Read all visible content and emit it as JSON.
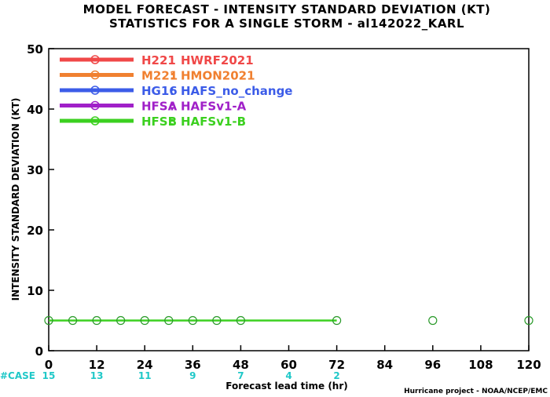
{
  "chart_data": {
    "type": "line",
    "title": "MODEL FORECAST - INTENSITY STANDARD DEVIATION (KT)",
    "subtitle": "STATISTICS FOR A SINGLE STORM - al142022_KARL",
    "xlabel": "Forecast lead time (hr)",
    "ylabel": "INTENSITY STANDARD DEVIATION (KT)",
    "xlim": [
      0,
      120
    ],
    "ylim": [
      0,
      50
    ],
    "x_ticks": [
      0,
      12,
      24,
      36,
      48,
      60,
      72,
      84,
      96,
      108,
      120
    ],
    "y_ticks": [
      0,
      10,
      20,
      30,
      40,
      50
    ],
    "grid": false,
    "legend_position": "top-left",
    "legend": [
      {
        "id": "H221",
        "model": "HWRF2021",
        "color": "#f04848"
      },
      {
        "id": "M221",
        "model": "HMON2021",
        "color": "#f08030"
      },
      {
        "id": "HG16",
        "model": "HAFS_no_change",
        "color": "#3c5ce8"
      },
      {
        "id": "HFSA",
        "model": "HAFSv1-A",
        "color": "#a020c8"
      },
      {
        "id": "HFSB",
        "model": "HAFSv1-B",
        "color": "#3cd020"
      }
    ],
    "series": [
      {
        "name": "HFSB: HAFSv1-B",
        "color": "#3cd020",
        "line_x": [
          0,
          6,
          12,
          18,
          24,
          30,
          36,
          42,
          48,
          72
        ],
        "line_y": [
          5,
          5,
          5,
          5,
          5,
          5,
          5,
          5,
          5,
          5
        ],
        "marker_color": "#2a9a2a",
        "markers_x": [
          0,
          6,
          12,
          18,
          24,
          30,
          36,
          42,
          48,
          72,
          96,
          120
        ],
        "markers_y": [
          5,
          5,
          5,
          5,
          5,
          5,
          5,
          5,
          5,
          5,
          5,
          5
        ]
      }
    ],
    "case_counts": {
      "label": "#CASE",
      "color": "#20c8c8",
      "x": [
        0,
        12,
        24,
        36,
        48,
        60,
        72
      ],
      "values": [
        "15",
        "13",
        "11",
        "9",
        "7",
        "4",
        "2"
      ]
    }
  },
  "credit": "Hurricane project - NOAA/NCEP/EMC"
}
